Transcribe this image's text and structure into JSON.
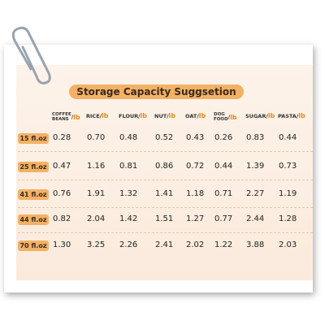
{
  "header": {
    "title": "Storage Capacity Suggsetion"
  },
  "table": {
    "columns": [
      {
        "label": [
          "COFFEE",
          "BEANS"
        ],
        "sep": "/",
        "unit": "lb"
      },
      {
        "label": [
          "RICE"
        ],
        "sep": "/",
        "unit": "lb"
      },
      {
        "label": [
          "FLOUR"
        ],
        "sep": "/",
        "unit": "lb"
      },
      {
        "label": [
          "NUT"
        ],
        "sep": "/",
        "unit": "lb"
      },
      {
        "label": [
          "OAT"
        ],
        "sep": "/",
        "unit": "lb"
      },
      {
        "label": [
          "DOG",
          "FOOD"
        ],
        "sep": "/",
        "unit": "lb"
      },
      {
        "label": [
          "SUGAR"
        ],
        "sep": "/",
        "unit": "lb"
      },
      {
        "label": [
          "PASTA"
        ],
        "sep": "/",
        "unit": "lb"
      }
    ],
    "rows": [
      {
        "size": "15 fl.oz",
        "values": [
          "0.28",
          "0.70",
          "0.48",
          "0.52",
          "0.43",
          "0.26",
          "0.83",
          "0.44"
        ]
      },
      {
        "size": "25 fl.oz",
        "values": [
          "0.47",
          "1.16",
          "0.81",
          "0.86",
          "0.72",
          "0.44",
          "1.39",
          "0.73"
        ]
      },
      {
        "size": "41 fl.oz",
        "values": [
          "0.76",
          "1.91",
          "1.32",
          "1.41",
          "1.18",
          "0.71",
          "2.27",
          "1.19"
        ]
      },
      {
        "size": "44 fl.oz",
        "values": [
          "0.82",
          "2.04",
          "1.42",
          "1.51",
          "1.27",
          "0.77",
          "2.44",
          "1.28"
        ]
      },
      {
        "size": "70 fl.oz",
        "values": [
          "1.30",
          "3.25",
          "2.26",
          "2.41",
          "2.02",
          "1.22",
          "3.88",
          "2.03"
        ]
      }
    ]
  }
}
